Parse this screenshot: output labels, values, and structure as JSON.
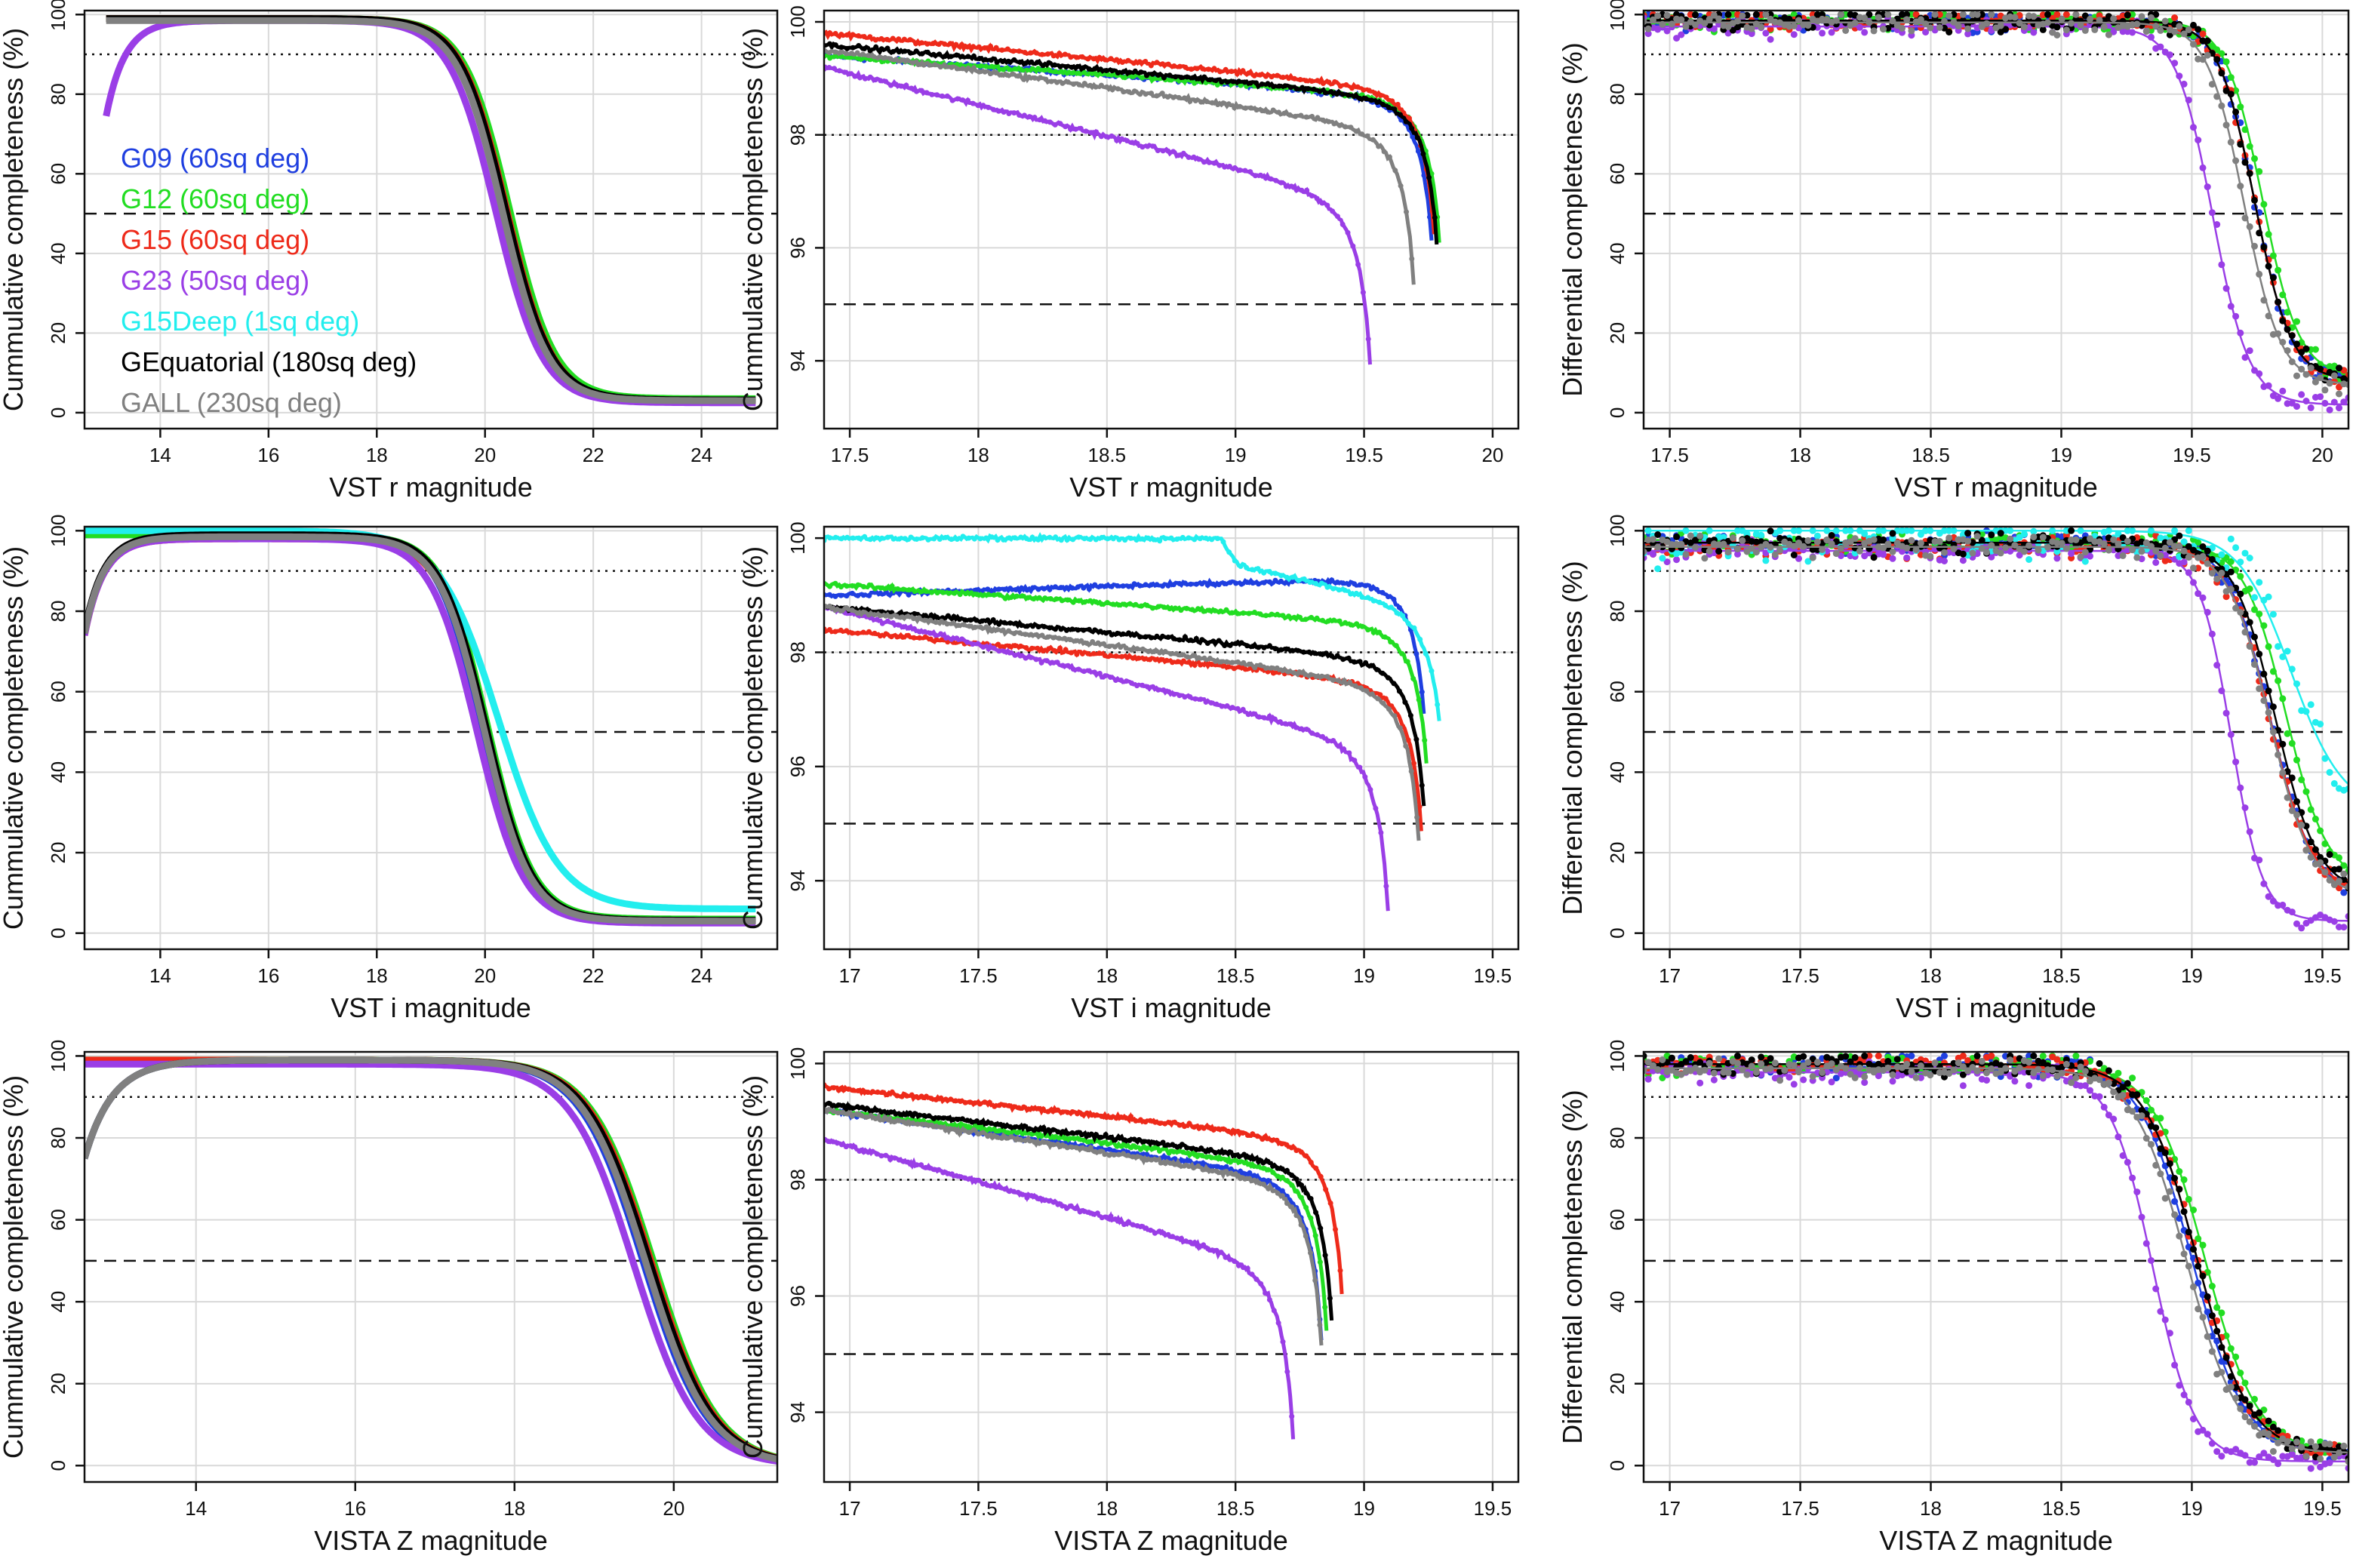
{
  "colors": {
    "G09": "#1f3fe0",
    "G12": "#22dd22",
    "G15": "#ee2a1a",
    "G23": "#9a3ee6",
    "G15Deep": "#22eeee",
    "GEquatorial": "#000000",
    "GALL": "#808080"
  },
  "legend": [
    {
      "key": "G09",
      "label": "G09 (60sq deg)"
    },
    {
      "key": "G12",
      "label": "G12 (60sq deg)"
    },
    {
      "key": "G15",
      "label": "G15 (60sq deg)"
    },
    {
      "key": "G23",
      "label": "G23 (50sq deg)"
    },
    {
      "key": "G15Deep",
      "label": "G15Deep (1sq deg)"
    },
    {
      "key": "GEquatorial",
      "label": "GEquatorial (180sq deg)"
    },
    {
      "key": "GALL",
      "label": "GALL (230sq deg)"
    }
  ],
  "chart_data": [
    {
      "type": "line",
      "kind": "cum",
      "xlabel": "VST r magnitude",
      "ylabel": "Cummulative completeness (%)",
      "xlim": [
        12.6,
        25.4
      ],
      "ylim": [
        -4,
        101
      ],
      "xticks": [
        14,
        16,
        18,
        20,
        22,
        24
      ],
      "yticks": [
        0,
        20,
        40,
        60,
        80,
        100
      ],
      "hlines": [
        {
          "y": 90,
          "style": "dotted"
        },
        {
          "y": 50,
          "style": "dashed"
        }
      ],
      "grid": true,
      "legend": "left",
      "series": [
        {
          "name": "G09",
          "m": 20.35,
          "w": 0.42,
          "top": 99,
          "floor": 3.0,
          "xmin": 13.0,
          "xmax": 25.0,
          "bright": false
        },
        {
          "name": "G12",
          "m": 20.45,
          "w": 0.42,
          "top": 99,
          "floor": 3.5,
          "xmin": 13.0,
          "xmax": 25.0,
          "bright": false
        },
        {
          "name": "G15",
          "m": 20.4,
          "w": 0.42,
          "top": 99,
          "floor": 3.0,
          "xmin": 13.0,
          "xmax": 25.0,
          "bright": false
        },
        {
          "name": "G23",
          "m": 20.2,
          "w": 0.43,
          "top": 98.5,
          "floor": 2.5,
          "xmin": 13.0,
          "xmax": 25.0,
          "bright": true
        },
        {
          "name": "GEquatorial",
          "m": 20.38,
          "w": 0.42,
          "top": 99,
          "floor": 3.2,
          "xmin": 13.0,
          "xmax": 25.0,
          "bright": false
        },
        {
          "name": "GALL",
          "m": 20.32,
          "w": 0.42,
          "top": 98.5,
          "floor": 3.0,
          "xmin": 13.0,
          "xmax": 25.0,
          "bright": false
        }
      ]
    },
    {
      "type": "line",
      "kind": "cumzoom",
      "xlabel": "VST r magnitude",
      "ylabel": "Cummulative completeness (%)",
      "xlim": [
        17.4,
        20.1
      ],
      "ylim": [
        92.8,
        100.2
      ],
      "xticks": [
        17.5,
        18,
        18.5,
        19,
        19.5,
        20
      ],
      "yticks": [
        94,
        96,
        98,
        100
      ],
      "hlines": [
        {
          "y": 98,
          "style": "dotted"
        },
        {
          "y": 95,
          "style": "dashed"
        }
      ],
      "grid": true,
      "series": [
        {
          "name": "G09",
          "start": 99.4,
          "slope": 0.3,
          "xt": 19.77,
          "k": 1.2
        },
        {
          "name": "G12",
          "start": 99.4,
          "slope": 0.3,
          "xt": 19.8,
          "k": 1.2
        },
        {
          "name": "G15",
          "start": 99.8,
          "slope": 0.42,
          "xt": 19.78,
          "k": 1.2
        },
        {
          "name": "G23",
          "start": 99.2,
          "slope": 1.1,
          "xt": 19.53,
          "k": 1.4
        },
        {
          "name": "GEquatorial",
          "start": 99.6,
          "slope": 0.4,
          "xt": 19.79,
          "k": 1.2
        },
        {
          "name": "GALL",
          "start": 99.5,
          "slope": 0.6,
          "xt": 19.7,
          "k": 1.3
        }
      ]
    },
    {
      "type": "scatter",
      "kind": "diff",
      "xlabel": "VST r magnitude",
      "ylabel": "Differential completeness (%)",
      "xlim": [
        17.4,
        20.1
      ],
      "ylim": [
        -4,
        101
      ],
      "xticks": [
        17.5,
        18,
        18.5,
        19,
        19.5,
        20
      ],
      "yticks": [
        0,
        20,
        40,
        60,
        80,
        100
      ],
      "hlines": [
        {
          "y": 90,
          "style": "dotted"
        },
        {
          "y": 50,
          "style": "dashed"
        }
      ],
      "grid": true,
      "series": [
        {
          "name": "G09",
          "m": 19.74,
          "w": 0.07,
          "top": 98.5,
          "floor": 8
        },
        {
          "name": "G12",
          "m": 19.77,
          "w": 0.07,
          "top": 98.5,
          "floor": 9
        },
        {
          "name": "G15",
          "m": 19.74,
          "w": 0.07,
          "top": 98.5,
          "floor": 8
        },
        {
          "name": "G23",
          "m": 19.58,
          "w": 0.07,
          "top": 97.0,
          "floor": 2
        },
        {
          "name": "GEquatorial",
          "m": 19.74,
          "w": 0.07,
          "top": 98.5,
          "floor": 8
        },
        {
          "name": "GALL",
          "m": 19.7,
          "w": 0.07,
          "top": 98.0,
          "floor": 7
        }
      ]
    },
    {
      "type": "line",
      "kind": "cum",
      "xlabel": "VST i magnitude",
      "ylabel": "Cummulative completeness (%)",
      "xlim": [
        12.6,
        25.4
      ],
      "ylim": [
        -4,
        101
      ],
      "xticks": [
        14,
        16,
        18,
        20,
        22,
        24
      ],
      "yticks": [
        0,
        20,
        40,
        60,
        80,
        100
      ],
      "hlines": [
        {
          "y": 90,
          "style": "dotted"
        },
        {
          "y": 50,
          "style": "dashed"
        }
      ],
      "grid": true,
      "series": [
        {
          "name": "G09",
          "m": 19.95,
          "w": 0.42,
          "top": 99,
          "floor": 3.0,
          "xmin": 12.6,
          "xmax": 25.0,
          "bright": false
        },
        {
          "name": "G12",
          "m": 20.05,
          "w": 0.42,
          "top": 99,
          "floor": 3.5,
          "xmin": 12.6,
          "xmax": 25.0,
          "bright": false
        },
        {
          "name": "G15",
          "m": 20.0,
          "w": 0.42,
          "top": 98,
          "floor": 3.0,
          "xmin": 12.6,
          "xmax": 25.0,
          "bright": true
        },
        {
          "name": "G23",
          "m": 19.85,
          "w": 0.43,
          "top": 98,
          "floor": 2.5,
          "xmin": 12.6,
          "xmax": 25.0,
          "bright": true
        },
        {
          "name": "G15Deep",
          "m": 20.25,
          "w": 0.55,
          "top": 100,
          "floor": 6.0,
          "xmin": 12.6,
          "xmax": 25.0,
          "bright": false
        },
        {
          "name": "GEquatorial",
          "m": 20.02,
          "w": 0.42,
          "top": 99,
          "floor": 3.2,
          "xmin": 12.6,
          "xmax": 25.0,
          "bright": true
        },
        {
          "name": "GALL",
          "m": 19.98,
          "w": 0.42,
          "top": 98.5,
          "floor": 3.0,
          "xmin": 12.6,
          "xmax": 25.0,
          "bright": true
        }
      ]
    },
    {
      "type": "line",
      "kind": "cumzoom",
      "xlabel": "VST i magnitude",
      "ylabel": "Cummulative completeness (%)",
      "xlim": [
        16.9,
        19.6
      ],
      "ylim": [
        92.8,
        100.2
      ],
      "xticks": [
        17,
        17.5,
        18,
        18.5,
        19,
        19.5
      ],
      "yticks": [
        94,
        96,
        98,
        100
      ],
      "hlines": [
        {
          "y": 98,
          "style": "dotted"
        },
        {
          "y": 95,
          "style": "dashed"
        }
      ],
      "grid": true,
      "series": [
        {
          "name": "G09",
          "start": 99.0,
          "slope": -0.15,
          "xt": 19.24,
          "k": 1.1
        },
        {
          "name": "G12",
          "start": 99.2,
          "slope": 0.3,
          "xt": 19.25,
          "k": 1.1
        },
        {
          "name": "G15",
          "start": 98.4,
          "slope": 0.4,
          "xt": 19.23,
          "k": 1.2
        },
        {
          "name": "G23",
          "start": 98.8,
          "slope": 1.1,
          "xt": 19.1,
          "k": 1.4
        },
        {
          "name": "G15Deep",
          "start": 100.0,
          "slope": 0.0,
          "xt": 19.3,
          "k": 0.8,
          "flatTo": 18.45
        },
        {
          "name": "GEquatorial",
          "start": 98.8,
          "slope": 0.4,
          "xt": 19.24,
          "k": 1.2
        },
        {
          "name": "GALL",
          "start": 98.8,
          "slope": 0.6,
          "xt": 19.22,
          "k": 1.3
        }
      ]
    },
    {
      "type": "scatter",
      "kind": "diff",
      "xlabel": "VST i magnitude",
      "ylabel": "Differential completeness (%)",
      "xlim": [
        16.9,
        19.6
      ],
      "ylim": [
        -4,
        101
      ],
      "xticks": [
        17,
        17.5,
        18,
        18.5,
        19,
        19.5
      ],
      "yticks": [
        0,
        20,
        40,
        60,
        80,
        100
      ],
      "hlines": [
        {
          "y": 90,
          "style": "dotted"
        },
        {
          "y": 50,
          "style": "dashed"
        }
      ],
      "grid": true,
      "series": [
        {
          "name": "G09",
          "m": 19.3,
          "w": 0.08,
          "top": 97,
          "floor": 10
        },
        {
          "name": "G12",
          "m": 19.36,
          "w": 0.08,
          "top": 97,
          "floor": 12
        },
        {
          "name": "G15",
          "m": 19.3,
          "w": 0.08,
          "top": 96,
          "floor": 10
        },
        {
          "name": "G23",
          "m": 19.15,
          "w": 0.06,
          "top": 95,
          "floor": 3
        },
        {
          "name": "G15Deep",
          "m": 19.38,
          "w": 0.1,
          "top": 100,
          "floor": 30
        },
        {
          "name": "GEquatorial",
          "m": 19.32,
          "w": 0.08,
          "top": 97,
          "floor": 10
        },
        {
          "name": "GALL",
          "m": 19.3,
          "w": 0.08,
          "top": 96,
          "floor": 9
        }
      ]
    },
    {
      "type": "line",
      "kind": "cum",
      "xlabel": "VISTA Z magnitude",
      "ylabel": "Cummulative completeness (%)",
      "xlim": [
        12.6,
        21.3
      ],
      "ylim": [
        -4,
        101
      ],
      "xticks": [
        14,
        16,
        18,
        20
      ],
      "yticks": [
        0,
        20,
        40,
        60,
        80,
        100
      ],
      "hlines": [
        {
          "y": 90,
          "style": "dotted"
        },
        {
          "y": 50,
          "style": "dashed"
        }
      ],
      "grid": true,
      "series": [
        {
          "name": "G09",
          "m": 19.62,
          "w": 0.4,
          "top": 99,
          "floor": 0,
          "xmin": 12.6,
          "xmax": 21.3,
          "bright": true
        },
        {
          "name": "G12",
          "m": 19.75,
          "w": 0.4,
          "top": 99,
          "floor": 0,
          "xmin": 12.6,
          "xmax": 21.3,
          "bright": false
        },
        {
          "name": "G15",
          "m": 19.72,
          "w": 0.4,
          "top": 99,
          "floor": 0,
          "xmin": 12.6,
          "xmax": 21.3,
          "bright": false
        },
        {
          "name": "G23",
          "m": 19.5,
          "w": 0.4,
          "top": 98,
          "floor": 0,
          "xmin": 12.6,
          "xmax": 21.3,
          "bright": false
        },
        {
          "name": "GEquatorial",
          "m": 19.7,
          "w": 0.4,
          "top": 99,
          "floor": 0,
          "xmin": 12.6,
          "xmax": 21.3,
          "bright": true
        },
        {
          "name": "GALL",
          "m": 19.65,
          "w": 0.4,
          "top": 99,
          "floor": 0,
          "xmin": 12.6,
          "xmax": 21.3,
          "bright": true
        }
      ]
    },
    {
      "type": "line",
      "kind": "cumzoom",
      "xlabel": "VISTA Z magnitude",
      "ylabel": "Cummulative completeness (%)",
      "xlim": [
        16.9,
        19.6
      ],
      "ylim": [
        92.8,
        100.2
      ],
      "xticks": [
        17,
        17.5,
        18,
        18.5,
        19,
        19.5
      ],
      "yticks": [
        94,
        96,
        98,
        100
      ],
      "hlines": [
        {
          "y": 98,
          "style": "dotted"
        },
        {
          "y": 95,
          "style": "dashed"
        }
      ],
      "grid": true,
      "series": [
        {
          "name": "G09",
          "start": 99.2,
          "slope": 0.6,
          "xt": 18.84,
          "k": 1.3
        },
        {
          "name": "G12",
          "start": 99.2,
          "slope": 0.5,
          "xt": 18.86,
          "k": 1.3
        },
        {
          "name": "G15",
          "start": 99.6,
          "slope": 0.45,
          "xt": 18.92,
          "k": 1.2
        },
        {
          "name": "G23",
          "start": 98.7,
          "slope": 1.2,
          "xt": 18.73,
          "k": 1.4
        },
        {
          "name": "GEquatorial",
          "start": 99.3,
          "slope": 0.5,
          "xt": 18.88,
          "k": 1.25
        },
        {
          "name": "GALL",
          "start": 99.2,
          "slope": 0.65,
          "xt": 18.84,
          "k": 1.3
        }
      ]
    },
    {
      "type": "scatter",
      "kind": "diff",
      "xlabel": "VISTA Z magnitude",
      "ylabel": "Differential completeness (%)",
      "xlim": [
        16.9,
        19.6
      ],
      "ylim": [
        -4,
        101
      ],
      "xticks": [
        17,
        17.5,
        18,
        18.5,
        19,
        19.5
      ],
      "yticks": [
        0,
        20,
        40,
        60,
        80,
        100
      ],
      "hlines": [
        {
          "y": 90,
          "style": "dotted"
        },
        {
          "y": 50,
          "style": "dashed"
        }
      ],
      "grid": true,
      "series": [
        {
          "name": "G09",
          "m": 19.0,
          "w": 0.1,
          "top": 98,
          "floor": 3
        },
        {
          "name": "G12",
          "m": 19.05,
          "w": 0.1,
          "top": 98,
          "floor": 3
        },
        {
          "name": "G15",
          "m": 19.02,
          "w": 0.1,
          "top": 98,
          "floor": 3
        },
        {
          "name": "G23",
          "m": 18.85,
          "w": 0.08,
          "top": 96,
          "floor": 1
        },
        {
          "name": "GEquatorial",
          "m": 19.02,
          "w": 0.1,
          "top": 98,
          "floor": 3
        },
        {
          "name": "GALL",
          "m": 18.98,
          "w": 0.1,
          "top": 97,
          "floor": 3
        }
      ]
    }
  ]
}
